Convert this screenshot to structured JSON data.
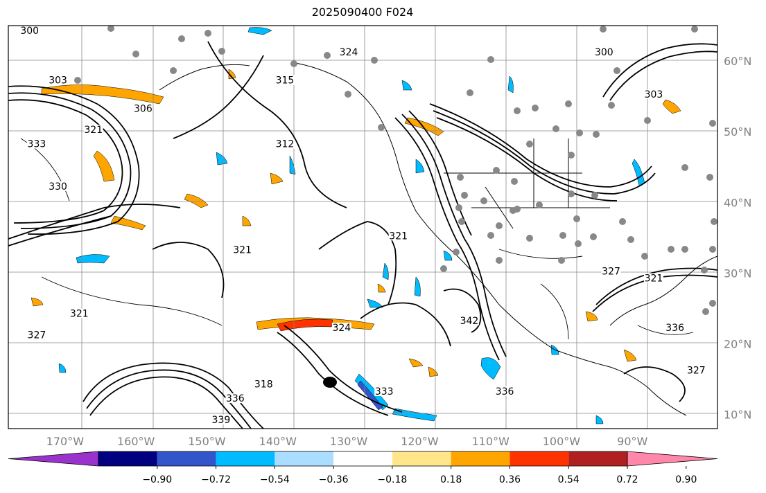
{
  "title": "2025090400 F024",
  "map": {
    "lon_range": [
      -178,
      -78
    ],
    "lat_range": [
      8,
      65
    ],
    "lon_ticks": [
      {
        "value": -170,
        "label": "170°W"
      },
      {
        "value": -160,
        "label": "160°W"
      },
      {
        "value": -150,
        "label": "150°W"
      },
      {
        "value": -140,
        "label": "140°W"
      },
      {
        "value": -130,
        "label": "130°W"
      },
      {
        "value": -120,
        "label": "120°W"
      },
      {
        "value": -110,
        "label": "110°W"
      },
      {
        "value": -100,
        "label": "100°W"
      },
      {
        "value": -90,
        "label": "90°W"
      }
    ],
    "lat_ticks": [
      {
        "value": 60,
        "label": "60°N"
      },
      {
        "value": 50,
        "label": "50°N"
      },
      {
        "value": 40,
        "label": "40°N"
      },
      {
        "value": 30,
        "label": "30°N"
      },
      {
        "value": 20,
        "label": "20°N"
      },
      {
        "value": 10,
        "label": "10°N"
      }
    ],
    "contour_labels": [
      {
        "text": "300",
        "lon": -175,
        "lat": 64
      },
      {
        "text": "303",
        "lon": -171,
        "lat": 57
      },
      {
        "text": "306",
        "lon": -159,
        "lat": 53
      },
      {
        "text": "333",
        "lon": -174,
        "lat": 48
      },
      {
        "text": "321",
        "lon": -166,
        "lat": 50
      },
      {
        "text": "330",
        "lon": -171,
        "lat": 42
      },
      {
        "text": "315",
        "lon": -139,
        "lat": 57
      },
      {
        "text": "312",
        "lon": -139,
        "lat": 48
      },
      {
        "text": "324",
        "lon": -130,
        "lat": 61
      },
      {
        "text": "321",
        "lon": -145,
        "lat": 33
      },
      {
        "text": "321",
        "lon": -123,
        "lat": 35
      },
      {
        "text": "324",
        "lon": -131,
        "lat": 22
      },
      {
        "text": "333",
        "lon": -125,
        "lat": 13
      },
      {
        "text": "342",
        "lon": -113,
        "lat": 23
      },
      {
        "text": "336",
        "lon": -108,
        "lat": 13
      },
      {
        "text": "336",
        "lon": -146,
        "lat": 12
      },
      {
        "text": "339",
        "lon": -148,
        "lat": 9
      },
      {
        "text": "318",
        "lon": -142,
        "lat": 14
      },
      {
        "text": "300",
        "lon": -94,
        "lat": 61
      },
      {
        "text": "303",
        "lon": -87,
        "lat": 55
      },
      {
        "text": "321",
        "lon": -87,
        "lat": 29
      },
      {
        "text": "336",
        "lon": -84,
        "lat": 22
      },
      {
        "text": "327",
        "lon": -81,
        "lat": 16
      },
      {
        "text": "327",
        "lon": -93,
        "lat": 30
      },
      {
        "text": "321",
        "lon": -168,
        "lat": 24
      },
      {
        "text": "327",
        "lon": -174,
        "lat": 21
      }
    ]
  },
  "colorbar": {
    "colors": [
      "#9933cc",
      "#000080",
      "#3355cc",
      "#00bbff",
      "#aaddff",
      "#ffffff",
      "#ffe68a",
      "#ffa500",
      "#ff3300",
      "#b02020",
      "#ff88aa"
    ],
    "tick_values": [
      "−0.90",
      "−0.72",
      "−0.54",
      "−0.36",
      "−0.18",
      "0.18",
      "0.36",
      "0.54",
      "0.72",
      "0.90"
    ]
  }
}
